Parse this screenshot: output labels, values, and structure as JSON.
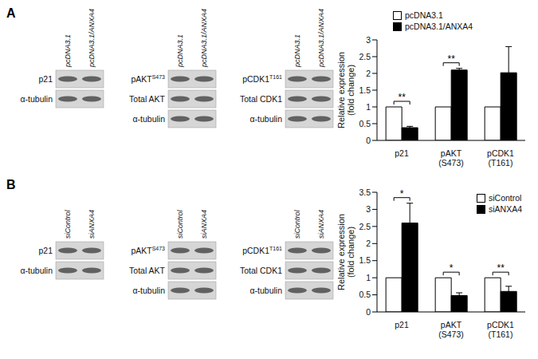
{
  "panels": [
    {
      "label": "A",
      "blots": [
        {
          "lanes": [
            "pcDNA3.1",
            "pcDNA3.1/ANXA4"
          ],
          "rows": [
            {
              "text": "p21"
            },
            {
              "text": "α-tubulin"
            }
          ]
        },
        {
          "lanes": [
            "pcDNA3.1",
            "pcDNA3.1/ANXA4"
          ],
          "rows": [
            {
              "text": "pAKT",
              "superscript": "S473"
            },
            {
              "text": "Total AKT"
            },
            {
              "text": "α-tubulin"
            }
          ]
        },
        {
          "lanes": [
            "pcDNA3.1",
            "pcDNA3.1/ANXA4"
          ],
          "rows": [
            {
              "text": "pCDK1",
              "superscript": "T161"
            },
            {
              "text": "Total CDK1"
            },
            {
              "text": "α-tubulin"
            }
          ]
        }
      ]
    },
    {
      "label": "B",
      "blots": [
        {
          "lanes": [
            "siControl",
            "siANXA4"
          ],
          "rows": [
            {
              "text": "p21"
            },
            {
              "text": "α-tubulin"
            }
          ]
        },
        {
          "lanes": [
            "siControl",
            "siANXA4"
          ],
          "rows": [
            {
              "text": "pAKT",
              "superscript": "S473"
            },
            {
              "text": "Total AKT"
            },
            {
              "text": "α-tubulin"
            }
          ]
        },
        {
          "lanes": [
            "siControl",
            "siANXA4"
          ],
          "rows": [
            {
              "text": "pCDK1",
              "superscript": "T161"
            },
            {
              "text": "Total CDK1"
            },
            {
              "text": "α-tubulin"
            }
          ]
        }
      ]
    }
  ],
  "chart_data": [
    {
      "type": "bar",
      "y_label": "Relative expression (fold change)",
      "categories": [
        "p21",
        "pAKT (S473)",
        "pCDK1 (T161)"
      ],
      "series": [
        {
          "name": "pcDNA3.1",
          "color": "#ffffff",
          "values": [
            1,
            1,
            1
          ]
        },
        {
          "name": "pcDNA3.1/ANXA4",
          "color": "#000000",
          "values": [
            0.38,
            2.1,
            2.02
          ],
          "errors": [
            0.04,
            0.05,
            0.78
          ]
        }
      ],
      "significance": [
        "**",
        "**",
        null
      ],
      "ylim": [
        0,
        3
      ],
      "yticks": [
        0,
        0.5,
        1,
        1.5,
        2,
        2.5,
        3
      ],
      "legend": "top"
    },
    {
      "type": "bar",
      "y_label": "Relative expression (fold change)",
      "categories": [
        "p21",
        "pAKT (S473)",
        "pCDK1 (T161)"
      ],
      "series": [
        {
          "name": "siControl",
          "color": "#ffffff",
          "values": [
            1,
            1,
            1
          ]
        },
        {
          "name": "siANXA4",
          "color": "#000000",
          "values": [
            2.6,
            0.48,
            0.6
          ],
          "errors": [
            0.58,
            0.08,
            0.15
          ]
        }
      ],
      "significance": [
        "*",
        "*",
        "**"
      ],
      "ylim": [
        0,
        3.5
      ],
      "yticks": [
        0,
        0.5,
        1,
        1.5,
        2,
        2.5,
        3,
        3.5
      ],
      "legend": "upper right"
    }
  ]
}
